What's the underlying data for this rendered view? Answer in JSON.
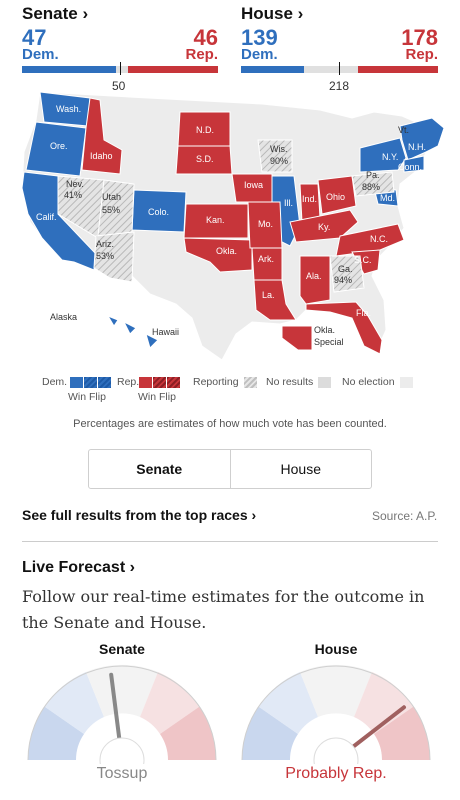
{
  "senate": {
    "title": "Senate ›",
    "dem_seats": "47",
    "rep_seats": "46",
    "dem_label": "Dem.",
    "rep_label": "Rep.",
    "majority": "50"
  },
  "house": {
    "title": "House ›",
    "dem_seats": "139",
    "rep_seats": "178",
    "dem_label": "Dem.",
    "rep_label": "Rep.",
    "majority": "218"
  },
  "map": {
    "states": [
      {
        "label": "Wash.",
        "party": "dem"
      },
      {
        "label": "Ore.",
        "party": "dem"
      },
      {
        "label": "Idaho",
        "party": "rep"
      },
      {
        "label": "Calif.",
        "party": "dem"
      },
      {
        "label": "Nev.",
        "party": "reporting",
        "pct": "41%"
      },
      {
        "label": "Utah",
        "party": "reporting",
        "pct": "55%"
      },
      {
        "label": "Ariz.",
        "party": "reporting",
        "pct": "53%"
      },
      {
        "label": "Colo.",
        "party": "dem"
      },
      {
        "label": "N.D.",
        "party": "rep"
      },
      {
        "label": "S.D.",
        "party": "rep"
      },
      {
        "label": "Kan.",
        "party": "rep"
      },
      {
        "label": "Okla.",
        "party": "rep"
      },
      {
        "label": "Iowa",
        "party": "rep"
      },
      {
        "label": "Mo.",
        "party": "rep"
      },
      {
        "label": "Ark.",
        "party": "rep"
      },
      {
        "label": "La.",
        "party": "rep"
      },
      {
        "label": "Wis.",
        "party": "reporting",
        "pct": "90%"
      },
      {
        "label": "Ill.",
        "party": "dem"
      },
      {
        "label": "Ind.",
        "party": "rep"
      },
      {
        "label": "Ohio",
        "party": "rep"
      },
      {
        "label": "Ky.",
        "party": "rep"
      },
      {
        "label": "Pa.",
        "party": "reporting",
        "pct": "88%"
      },
      {
        "label": "N.Y.",
        "party": "dem"
      },
      {
        "label": "N.H.",
        "party": "dem"
      },
      {
        "label": "Vt.",
        "party": "dem"
      },
      {
        "label": "Conn.",
        "party": "dem"
      },
      {
        "label": "Md.",
        "party": "dem"
      },
      {
        "label": "N.C.",
        "party": "rep"
      },
      {
        "label": "S.C.",
        "party": "rep"
      },
      {
        "label": "Ga.",
        "party": "reporting",
        "pct": "94%"
      },
      {
        "label": "Ala.",
        "party": "rep"
      },
      {
        "label": "Fla.",
        "party": "rep"
      },
      {
        "label": "Alaska",
        "party": "none"
      },
      {
        "label": "Hawaii",
        "party": "dem"
      },
      {
        "label": "Okla.",
        "party": "rep",
        "sub": "Special"
      }
    ]
  },
  "legend": {
    "dem": "Dem.",
    "rep": "Rep.",
    "dem_flip": "Win Flip",
    "rep_flip": "Win Flip",
    "reporting": "Reporting",
    "no_results": "No results",
    "no_election": "No election"
  },
  "note": "Percentages are estimates of how much vote has been counted.",
  "toggle": {
    "senate": "Senate",
    "house": "House"
  },
  "results_link": "See full results from the top races ›",
  "source": "Source: A.P.",
  "forecast": {
    "title": "Live Forecast ›",
    "description": "Follow our real-time estimates for the outcome in the Senate and House.",
    "senate_gauge": {
      "title": "Senate",
      "outcome": "Tossup",
      "needle_fraction": 0.46
    },
    "house_gauge": {
      "title": "House",
      "outcome": "Probably Rep.",
      "needle_fraction": 0.79
    }
  },
  "colors": {
    "dem": "#2f6fbd",
    "rep": "#c7353a",
    "reporting": "#dcdcdc",
    "no_election": "#ececec"
  }
}
